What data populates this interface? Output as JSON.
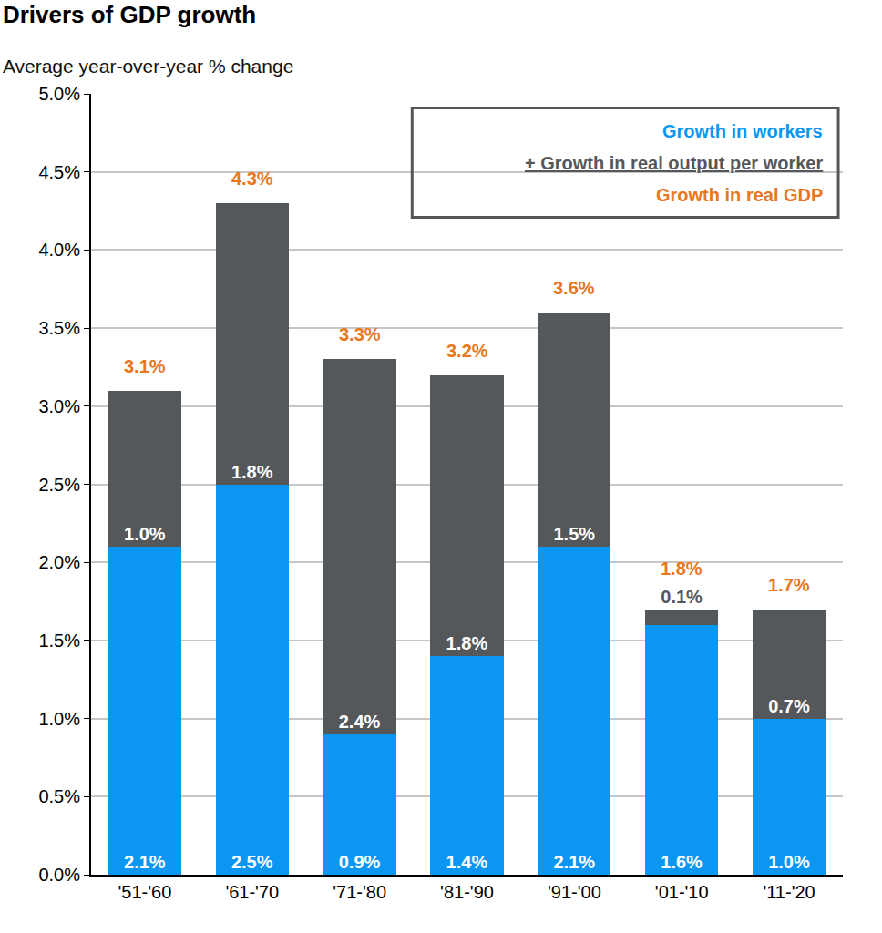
{
  "chart_data": {
    "type": "bar",
    "title": "Drivers of GDP growth",
    "subtitle": "Average year-over-year % change",
    "categories": [
      "'51-'60",
      "'61-'70",
      "'71-'80",
      "'81-'90",
      "'91-'00",
      "'01-'10",
      "'11-'20"
    ],
    "series": [
      {
        "name": "Growth in workers",
        "type": "bar",
        "color": "#0b96f2",
        "values": [
          2.1,
          2.5,
          0.9,
          1.4,
          2.1,
          1.6,
          1.0
        ],
        "value_labels": [
          "2.1%",
          "2.5%",
          "0.9%",
          "1.4%",
          "2.1%",
          "1.6%",
          "1.0%"
        ]
      },
      {
        "name": "+ Growth in real output per worker",
        "type": "bar",
        "color": "#55585b",
        "values": [
          1.0,
          1.8,
          2.4,
          1.8,
          1.5,
          0.1,
          0.7
        ],
        "value_labels": [
          "1.0%",
          "1.8%",
          "2.4%",
          "1.8%",
          "1.5%",
          "0.1%",
          "0.7%"
        ]
      },
      {
        "name": "Growth in real GDP",
        "type": "text",
        "color": "#e8771e",
        "values": [
          3.1,
          4.3,
          3.3,
          3.2,
          3.6,
          1.8,
          1.7
        ],
        "value_labels": [
          "3.1%",
          "4.3%",
          "3.3%",
          "3.2%",
          "3.6%",
          "1.8%",
          "1.7%"
        ]
      }
    ],
    "ylim": [
      0,
      5
    ],
    "yticks": [
      {
        "value": 0,
        "label": "0.0%"
      },
      {
        "value": 0.5,
        "label": "0.5%"
      },
      {
        "value": 1,
        "label": "1.0%"
      },
      {
        "value": 1.5,
        "label": "1.5%"
      },
      {
        "value": 2,
        "label": "2.0%"
      },
      {
        "value": 2.5,
        "label": "2.5%"
      },
      {
        "value": 3,
        "label": "3.0%"
      },
      {
        "value": 3.5,
        "label": "3.5%"
      },
      {
        "value": 4,
        "label": "4.0%"
      },
      {
        "value": 4.5,
        "label": "4.5%"
      },
      {
        "value": 5,
        "label": "5.0%"
      }
    ],
    "grid": true,
    "stacked": true,
    "data_labels": true,
    "legend": "top right"
  }
}
